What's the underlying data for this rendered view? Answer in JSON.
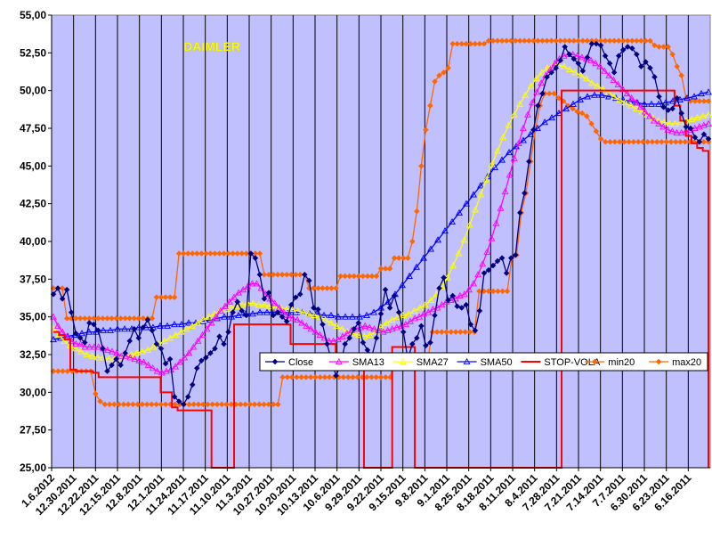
{
  "chart_data": {
    "type": "line",
    "title": "DAIMLER",
    "xlabel": "",
    "ylabel": "",
    "ylim": [
      25,
      55
    ],
    "y_ticks": [
      "25,00",
      "27,50",
      "30,00",
      "32,50",
      "35,00",
      "37,50",
      "40,00",
      "42,50",
      "45,00",
      "47,50",
      "50,00",
      "52,50",
      "55,00"
    ],
    "x_tick_labels": [
      "1.6.2012",
      "12.30.2011",
      "12.22.2011",
      "12.15.2011",
      "12.8.2011",
      "12.1.2011",
      "11.24.2011",
      "11.17.2011",
      "11.10.2011",
      "11.3.2011",
      "10.27.2011",
      "10.20.2011",
      "10.13.2011",
      "10.6.2011",
      "9.29.2011",
      "9.22.2011",
      "9.15.2011",
      "9.8.2011",
      "9.1.2011",
      "8.25.2011",
      "8.18.2011",
      "8.11.2011",
      "8.4.2011",
      "7.28.2011",
      "7.21.2011",
      "7.14.2011",
      "7.7.2011",
      "6.30.2011",
      "6.23.2011",
      "6.16.2011"
    ],
    "grid": "vertical lines at each x tick",
    "legend_position": "right, inside plot, middle",
    "colors": {
      "plot_background": "#c0c0ff",
      "title": "#ffff00"
    },
    "series": [
      {
        "name": "Close",
        "color": "#000080",
        "marker": "diamond",
        "values": [
          36.5,
          36.9,
          36.2,
          36.8,
          35.3,
          33.9,
          33.6,
          33.3,
          34.6,
          34.5,
          34.1,
          32.9,
          31.4,
          31.8,
          32.2,
          31.8,
          32.6,
          33.4,
          34.2,
          33.6,
          34.3,
          34.8,
          34.1,
          33.2,
          32.9,
          31.9,
          32.2,
          29.7,
          29.4,
          29.2,
          29.7,
          30.5,
          31.6,
          32.1,
          32.3,
          32.6,
          32.9,
          33.7,
          33.2,
          34.0,
          35.3,
          36.0,
          35.4,
          35.1,
          39.2,
          38.9,
          37.8,
          36.2,
          36.6,
          35.1,
          35.3,
          35.0,
          34.7,
          35.8,
          36.3,
          36.5,
          37.8,
          37.4,
          35.6,
          35.5,
          34.5,
          33.2,
          32.1,
          31.1,
          31.8,
          33.2,
          33.6,
          34.2,
          34.6,
          33.3,
          32.8,
          32.4,
          33.6,
          35.2,
          36.8,
          35.6,
          36.4,
          35.3,
          34.0,
          32.2,
          33.2,
          33.6,
          34.4,
          33.1,
          33.3,
          35.1,
          36.9,
          37.6,
          36.1,
          36.4,
          35.7,
          35.6,
          35.8,
          34.5,
          34.1,
          35.4,
          37.9,
          38.1,
          38.4,
          38.7,
          38.9,
          37.9,
          38.9,
          39.1,
          41.9,
          43.2,
          45.3,
          47.4,
          49.0,
          49.8,
          50.9,
          51.2,
          51.5,
          52.0,
          52.9,
          52.4,
          52.1,
          51.8,
          51.3,
          52.2,
          53.1,
          53.1,
          53.0,
          52.3,
          51.8,
          51.2,
          52.3,
          52.7,
          52.9,
          52.8,
          52.4,
          51.6,
          51.9,
          51.5,
          50.9,
          49.6,
          48.9,
          48.7,
          48.8,
          49.5,
          48.5,
          47.6,
          47.5,
          46.9,
          46.6,
          47.1,
          46.8
        ]
      },
      {
        "name": "SMA13",
        "color": "#ff00ff",
        "marker": "triangle",
        "values": [
          35.0,
          34.4,
          34.0,
          33.7,
          33.4,
          33.2,
          33.2,
          33.0,
          33.0,
          33.0,
          33.0,
          32.9,
          32.8,
          32.7,
          32.6,
          32.4,
          32.4,
          32.3,
          32.2,
          32.1,
          32.0,
          31.8,
          31.6,
          31.4,
          31.3,
          31.4,
          31.5,
          31.7,
          32.0,
          32.3,
          32.6,
          33.0,
          33.4,
          33.8,
          34.2,
          34.6,
          35.0,
          35.4,
          35.7,
          36.0,
          36.3,
          36.6,
          36.8,
          37.0,
          37.2,
          37.2,
          36.9,
          36.5,
          36.2,
          35.9,
          35.6,
          35.3,
          35.1,
          34.9,
          34.8,
          34.6,
          34.4,
          34.2,
          34.0,
          33.8,
          33.6,
          33.4,
          33.4,
          33.5,
          33.7,
          33.9,
          34.1,
          34.2,
          34.3,
          34.4,
          34.3,
          34.2,
          34.1,
          34.0,
          34.1,
          34.2,
          34.3,
          34.4,
          34.5,
          34.7,
          34.9,
          35.0,
          35.2,
          35.3,
          35.5,
          35.6,
          35.8,
          36.0,
          36.1,
          36.2,
          36.4,
          36.5,
          36.8,
          37.2,
          37.8,
          38.5,
          39.3,
          40.2,
          41.2,
          42.2,
          43.3,
          44.4,
          45.5,
          46.5,
          47.5,
          48.4,
          49.2,
          49.9,
          50.5,
          51.0,
          51.4,
          51.8,
          52.1,
          52.3,
          52.4,
          52.4,
          52.3,
          52.2,
          52.1,
          52.0,
          51.8,
          51.6,
          51.3,
          51.0,
          50.7,
          50.4,
          50.1,
          49.8,
          49.5,
          49.2,
          48.9,
          48.6,
          48.3,
          48.0,
          47.8,
          47.6,
          47.4,
          47.3,
          47.2,
          47.2,
          47.3,
          47.4,
          47.5,
          47.6,
          47.7,
          47.8
        ]
      },
      {
        "name": "SMA27",
        "color": "#ffff00",
        "marker": "triangle",
        "values": [
          34.2,
          33.8,
          33.4,
          33.1,
          32.9,
          32.7,
          32.5,
          32.4,
          32.3,
          32.3,
          32.2,
          32.2,
          32.3,
          32.4,
          32.5,
          32.6,
          32.7,
          32.8,
          33.0,
          33.2,
          33.4,
          33.6,
          33.8,
          34.0,
          34.2,
          34.4,
          34.6,
          34.8,
          35.0,
          35.2,
          35.4,
          35.5,
          35.6,
          35.7,
          35.8,
          35.9,
          35.9,
          35.8,
          35.8,
          35.7,
          35.6,
          35.6,
          35.5,
          35.5,
          35.4,
          35.3,
          35.2,
          35.1,
          35.0,
          34.8,
          34.6,
          34.4,
          34.2,
          34.0,
          33.9,
          33.8,
          33.7,
          33.8,
          34.0,
          34.3,
          34.6,
          34.8,
          35.0,
          35.1,
          35.2,
          35.4,
          35.6,
          35.8,
          36.1,
          36.5,
          37.0,
          37.6,
          38.4,
          39.2,
          40.1,
          41.1,
          42.1,
          43.1,
          44.1,
          45.1,
          46.0,
          46.9,
          47.7,
          48.4,
          49.1,
          49.7,
          50.3,
          50.8,
          51.2,
          51.5,
          51.7,
          51.7,
          51.6,
          51.4,
          51.2,
          51.0,
          50.8,
          50.5,
          50.3,
          50.1,
          49.9,
          49.6,
          49.4,
          49.2,
          49.0,
          48.8,
          48.6,
          48.4,
          48.2,
          48.0,
          47.9,
          47.8,
          47.8,
          47.9,
          48.0,
          48.1,
          48.2,
          48.3,
          48.4
        ]
      },
      {
        "name": "SMA50",
        "color": "#0000ff",
        "marker": "triangle",
        "values": [
          33.5,
          33.6,
          33.7,
          33.8,
          33.9,
          34.0,
          34.0,
          34.1,
          34.1,
          34.2,
          34.2,
          34.2,
          34.3,
          34.3,
          34.3,
          34.4,
          34.4,
          34.5,
          34.5,
          34.6,
          34.6,
          34.7,
          34.8,
          34.9,
          35.0,
          35.0,
          35.1,
          35.2,
          35.2,
          35.3,
          35.3,
          35.3,
          35.3,
          35.3,
          35.3,
          35.3,
          35.2,
          35.2,
          35.1,
          35.1,
          35.0,
          35.0,
          35.0,
          35.0,
          35.1,
          35.3,
          35.6,
          36.0,
          36.5,
          37.1,
          37.7,
          38.3,
          38.9,
          39.5,
          40.1,
          40.7,
          41.3,
          41.9,
          42.5,
          43.1,
          43.7,
          44.3,
          44.9,
          45.4,
          45.9,
          46.3,
          46.7,
          47.1,
          47.5,
          47.9,
          48.2,
          48.5,
          48.8,
          49.1,
          49.4,
          49.6,
          49.7,
          49.7,
          49.6,
          49.5,
          49.4,
          49.3,
          49.2,
          49.1,
          49.1,
          49.1,
          49.2,
          49.3,
          49.4,
          49.5,
          49.6,
          49.8,
          49.9
        ]
      },
      {
        "name": "STOP-VOLA",
        "color": "#ff0000",
        "marker": "none",
        "values": [
          34.0,
          33.8,
          33.5,
          31.5,
          31.4,
          31.4,
          31.4,
          31.3,
          31.0,
          31.0,
          31.0,
          31.0,
          31.0,
          31.0,
          31.0,
          31.0,
          31.0,
          31.0,
          31.0,
          30.0,
          30.0,
          29.0,
          28.8,
          28.8,
          28.8,
          28.8,
          28.8,
          28.8,
          25.0,
          25.0,
          25.0,
          25.0,
          34.5,
          34.5,
          34.5,
          34.5,
          34.5,
          34.5,
          34.5,
          34.5,
          34.5,
          34.5,
          33.2,
          33.2,
          33.2,
          33.2,
          33.2,
          33.2,
          33.2,
          33.2,
          32.5,
          32.5,
          32.5,
          32.5,
          32.5,
          25.0,
          25.0,
          25.0,
          25.0,
          25.0,
          33.0,
          33.0,
          33.0,
          33.0,
          25.0,
          25.0,
          25.0,
          25.0,
          25.0,
          25.0,
          25.0,
          25.0,
          25.0,
          25.0,
          25.0,
          25.0,
          25.0,
          25.0,
          25.0,
          25.0,
          25.0,
          25.0,
          25.0,
          25.0,
          25.0,
          25.0,
          25.0,
          25.0,
          25.0,
          25.0,
          50.0,
          50.0,
          50.0,
          50.0,
          50.0,
          50.0,
          50.0,
          50.0,
          50.0,
          50.0,
          50.0,
          50.0,
          50.0,
          50.0,
          50.0,
          50.0,
          50.0,
          50.0,
          50.0,
          50.0,
          49.0,
          48.0,
          47.0,
          46.5,
          46.2,
          46.0,
          25.0
        ]
      },
      {
        "name": "min20",
        "color": "#ff6600",
        "marker": "diamond",
        "values": [
          31.4,
          31.4,
          31.4,
          31.4,
          31.4,
          31.4,
          31.4,
          31.4,
          31.4,
          29.9,
          29.4,
          29.2,
          29.2,
          29.2,
          29.2,
          29.2,
          29.2,
          29.2,
          29.2,
          29.2,
          29.2,
          29.2,
          29.2,
          29.2,
          29.2,
          29.2,
          29.2,
          29.2,
          29.2,
          29.2,
          29.2,
          29.2,
          29.2,
          29.2,
          29.2,
          29.2,
          29.2,
          29.2,
          29.2,
          29.2,
          29.2,
          29.2,
          29.2,
          29.2,
          29.2,
          29.2,
          29.2,
          29.2,
          29.2,
          31.0,
          31.0,
          31.0,
          31.0,
          31.0,
          31.0,
          31.0,
          31.0,
          31.0,
          31.0,
          31.0,
          31.0,
          31.0,
          31.0,
          31.0,
          31.0,
          31.0,
          31.0,
          31.0,
          31.0,
          31.0,
          31.0,
          31.0,
          31.0,
          32.2,
          32.2,
          32.2,
          32.2,
          32.2,
          32.2,
          32.2,
          32.2,
          34.0,
          34.0,
          34.0,
          34.0,
          34.0,
          34.0,
          34.0,
          34.0,
          34.0,
          34.0,
          36.7,
          36.7,
          36.7,
          36.7,
          36.7,
          36.7,
          36.7,
          38.9,
          39.1,
          41.9,
          43.2,
          45.3,
          47.4,
          49.0,
          49.8,
          49.8,
          49.8,
          49.5,
          49.3,
          49.0,
          48.8,
          48.6,
          48.5,
          48.3,
          47.8,
          47.3,
          46.8,
          46.6,
          46.6,
          46.6,
          46.6,
          46.6,
          46.6,
          46.6,
          46.6,
          46.6,
          46.6,
          46.6,
          46.6,
          46.6,
          46.6,
          46.6,
          46.6,
          46.6,
          46.6,
          46.6,
          46.6,
          46.6,
          46.6,
          46.6
        ]
      },
      {
        "name": "max20",
        "color": "#ff6600",
        "marker": "diamond",
        "values": [
          36.9,
          36.9,
          36.9,
          34.9,
          34.9,
          34.9,
          34.9,
          34.9,
          34.9,
          34.9,
          34.9,
          34.9,
          34.9,
          34.9,
          34.9,
          34.9,
          34.9,
          34.9,
          34.9,
          34.9,
          34.9,
          34.9,
          34.9,
          36.3,
          36.3,
          36.3,
          36.3,
          36.3,
          39.2,
          39.2,
          39.2,
          39.2,
          39.2,
          39.2,
          39.2,
          39.2,
          39.2,
          39.2,
          39.2,
          39.2,
          39.2,
          39.2,
          39.2,
          39.2,
          39.2,
          39.2,
          39.2,
          37.8,
          37.8,
          37.8,
          37.8,
          37.8,
          37.8,
          37.8,
          37.8,
          37.8,
          37.8,
          36.9,
          36.9,
          36.9,
          36.9,
          36.9,
          36.9,
          36.9,
          37.7,
          37.7,
          37.7,
          37.7,
          37.7,
          37.7,
          37.7,
          37.7,
          37.7,
          38.2,
          38.2,
          38.2,
          38.9,
          38.9,
          38.9,
          38.9,
          40.0,
          42.0,
          45.0,
          47.4,
          49.0,
          50.6,
          51.0,
          51.2,
          51.5,
          53.1,
          53.1,
          53.1,
          53.1,
          53.1,
          53.1,
          53.1,
          53.1,
          53.3,
          53.3,
          53.3,
          53.3,
          53.3,
          53.3,
          53.3,
          53.3,
          53.3,
          53.3,
          53.3,
          53.3,
          53.3,
          53.3,
          53.3,
          53.3,
          53.3,
          53.3,
          53.3,
          53.3,
          53.3,
          53.3,
          53.3,
          53.3,
          53.3,
          53.3,
          53.3,
          53.3,
          53.3,
          53.3,
          53.3,
          53.3,
          53.3,
          53.3,
          53.3,
          53.3,
          53.3,
          53.0,
          52.9,
          52.9,
          52.9,
          52.4,
          51.6,
          51.0,
          49.5,
          49.3,
          49.3,
          49.3,
          49.3,
          49.3
        ]
      }
    ]
  }
}
